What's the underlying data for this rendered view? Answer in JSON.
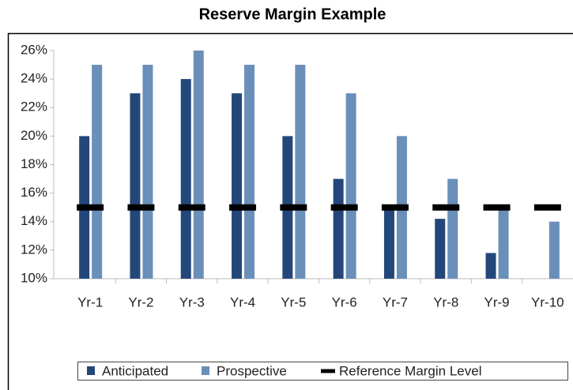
{
  "chart_data": {
    "type": "bar",
    "title": "Reserve Margin Example",
    "categories": [
      "Yr-1",
      "Yr-2",
      "Yr-3",
      "Yr-4",
      "Yr-5",
      "Yr-6",
      "Yr-7",
      "Yr-8",
      "Yr-9",
      "Yr-10"
    ],
    "series": [
      {
        "name": "Anticipated",
        "color": "#24477a",
        "values": [
          20,
          23,
          24,
          23,
          20,
          17,
          15,
          14.2,
          11.8,
          null
        ]
      },
      {
        "name": "Prospective",
        "color": "#6a8fb8",
        "values": [
          25,
          25,
          26,
          25,
          25,
          23,
          20,
          17,
          15,
          14
        ]
      },
      {
        "name": "Reference Margin Level",
        "color": "#000000",
        "type": "line-marker",
        "values": [
          15,
          15,
          15,
          15,
          15,
          15,
          15,
          15,
          15,
          15
        ]
      }
    ],
    "ylim": [
      10,
      26
    ],
    "yticks": [
      {
        "value": 10,
        "label": "10%"
      },
      {
        "value": 12,
        "label": "12%"
      },
      {
        "value": 14,
        "label": "14%"
      },
      {
        "value": 16,
        "label": "16%"
      },
      {
        "value": 18,
        "label": "18%"
      },
      {
        "value": 20,
        "label": "20%"
      },
      {
        "value": 22,
        "label": "22%"
      },
      {
        "value": 24,
        "label": "24%"
      },
      {
        "value": 26,
        "label": "26%"
      }
    ],
    "legend": "bottom"
  }
}
